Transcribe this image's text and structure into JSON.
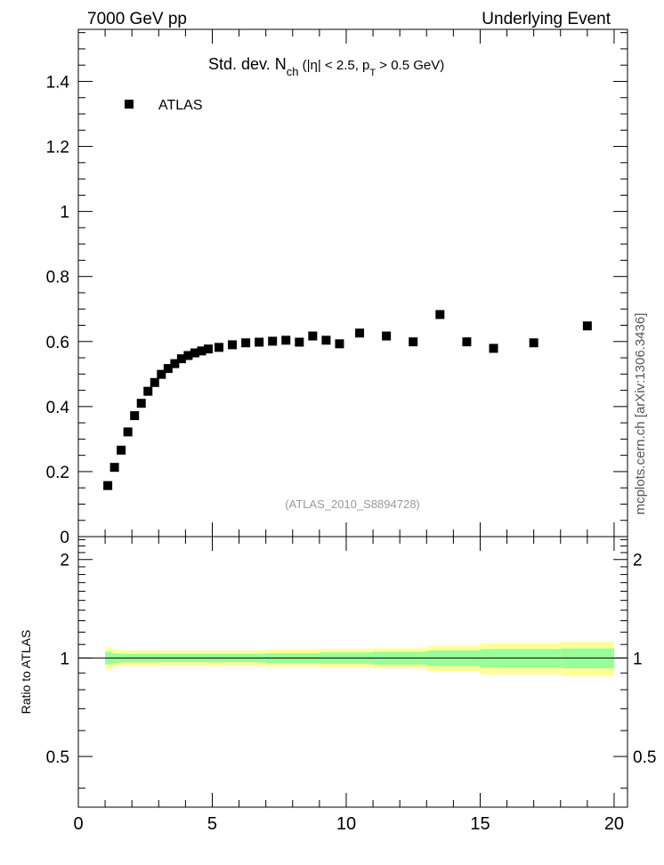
{
  "header": {
    "left": "7000 GeV pp",
    "right": "Underlying Event"
  },
  "side_label": "mcplots.cern.ch [arXiv:1306.3436]",
  "chart_data": [
    {
      "type": "scatter",
      "title": "Std. dev. N_ch (|η| < 2.5, p_T > 0.5 GeV)",
      "title_parts": {
        "main": "Std. dev. N",
        "sub1": "ch",
        "mid": " (|η| < 2.5, p",
        "sub2": "T",
        "end": " > 0.5 GeV)"
      },
      "watermark": "(ATLAS_2010_S8894728)",
      "xlabel": "",
      "ylabel": "",
      "xlim": [
        0,
        20.5
      ],
      "ylim": [
        0,
        1.56
      ],
      "yticks": [
        "0",
        "0.2",
        "0.4",
        "0.6",
        "0.8",
        "1",
        "1.2",
        "1.4"
      ],
      "legend": {
        "position": "top-left",
        "entries": [
          {
            "name": "ATLAS",
            "marker": "square",
            "color": "#000000"
          }
        ]
      },
      "series": [
        {
          "name": "ATLAS",
          "x": [
            1.1,
            1.35,
            1.6,
            1.85,
            2.1,
            2.35,
            2.6,
            2.85,
            3.1,
            3.35,
            3.6,
            3.85,
            4.1,
            4.35,
            4.6,
            4.85,
            5.25,
            5.75,
            6.25,
            6.75,
            7.25,
            7.75,
            8.25,
            8.75,
            9.25,
            9.75,
            10.5,
            11.5,
            12.5,
            13.5,
            14.5,
            15.5,
            17.0,
            19.0
          ],
          "y": [
            0.157,
            0.213,
            0.266,
            0.322,
            0.372,
            0.41,
            0.447,
            0.474,
            0.499,
            0.517,
            0.532,
            0.547,
            0.557,
            0.565,
            0.571,
            0.577,
            0.582,
            0.59,
            0.596,
            0.598,
            0.601,
            0.604,
            0.598,
            0.617,
            0.604,
            0.593,
            0.626,
            0.617,
            0.599,
            0.683,
            0.599,
            0.579,
            0.596,
            0.648
          ]
        }
      ]
    },
    {
      "type": "area",
      "ylabel": "Ratio to ATLAS",
      "xlim": [
        0,
        20.5
      ],
      "ylim": [
        0.35,
        2.35
      ],
      "yticks": [
        "0.5",
        "1",
        "2"
      ],
      "xticks": [
        "0",
        "5",
        "10",
        "15",
        "20"
      ],
      "reference_line": 1,
      "bands": {
        "x_edges": [
          1.0,
          1.25,
          1.5,
          2.0,
          3.0,
          5.0,
          7.0,
          9.0,
          11.0,
          13.0,
          15.0,
          18.0,
          20.0
        ],
        "yellow_half_width": [
          0.08,
          0.06,
          0.055,
          0.055,
          0.055,
          0.055,
          0.06,
          0.065,
          0.07,
          0.09,
          0.11,
          0.12,
          0.12
        ],
        "green_half_width": [
          0.045,
          0.035,
          0.03,
          0.03,
          0.03,
          0.03,
          0.035,
          0.04,
          0.045,
          0.055,
          0.065,
          0.07,
          0.07
        ],
        "yellow_color": "#ffff99",
        "green_color": "#99ff99"
      }
    }
  ]
}
